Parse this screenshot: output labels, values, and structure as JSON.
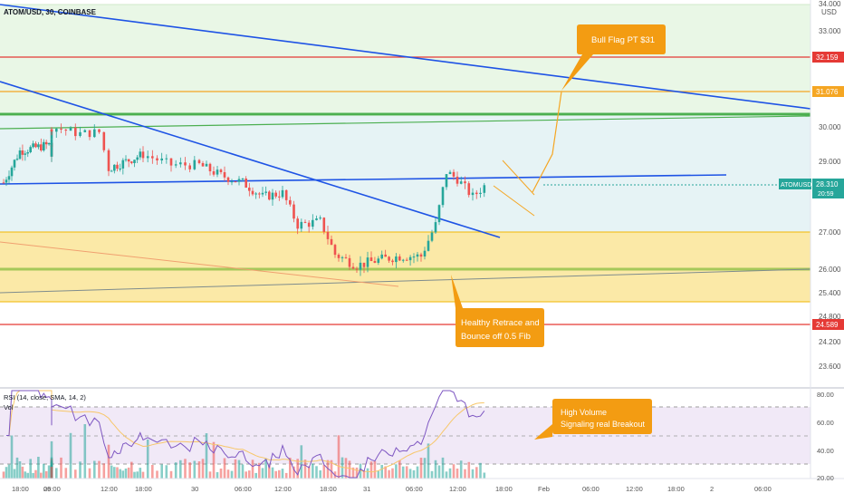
{
  "header": {
    "symbol_line": "ATOM/USD, 30, COINBASE"
  },
  "price_axis": {
    "currency": "USD",
    "ticks": [
      "34.000",
      "33.000",
      "30.000",
      "29.000",
      "27.000",
      "26.000",
      "25.400",
      "24.800",
      "24.200",
      "23.600"
    ]
  },
  "badges": {
    "r1": "32.159",
    "r2": "31.076",
    "current_symbol": "ATOMUSD",
    "current_price": "28.310",
    "current_timer": "20:59",
    "support": "24.589"
  },
  "annotations": {
    "bull_flag": "Bull Flag PT $31",
    "retrace_line1": "Healthy Retrace and",
    "retrace_line2": "Bounce off 0.5 Fib",
    "volume_line1": "High Volume",
    "volume_line2": "Signaling real Breakout"
  },
  "indicator": {
    "rsi_label": "RSI (14, close, SMA, 14, 2)",
    "vol_label": "Vol",
    "ticks": [
      "80.00",
      "60.00",
      "40.00",
      "20.00"
    ]
  },
  "time_axis": {
    "labels": [
      "18:00",
      "29",
      "06:00",
      "12:00",
      "18:00",
      "30",
      "06:00",
      "12:00",
      "18:00",
      "31",
      "06:00",
      "12:00",
      "18:00",
      "Feb",
      "06:00",
      "12:00",
      "18:00",
      "2",
      "06:00"
    ]
  },
  "colors": {
    "up": "#26a69a",
    "down": "#ef5350",
    "trend": "#1e53e5",
    "zone_yellow": "#fbe9a7",
    "zone_green": "#e9f7e6",
    "zone_blue": "#e6f3f5",
    "callout": "#f39c12",
    "resist": "#e53935"
  },
  "chart_data": {
    "type": "candlestick",
    "title": "ATOM/USD, 30, COINBASE",
    "interval": "30",
    "exchange": "COINBASE",
    "x_start": "Jan 28 14:30",
    "x_label_times": [
      "Jan 28 18:00",
      "Jan 29 00:00",
      "Jan 29 06:00",
      "Jan 29 12:00",
      "Jan 29 18:00",
      "Jan 30 00:00",
      "Jan 30 06:00",
      "Jan 30 12:00",
      "Jan 30 18:00",
      "Jan 31 00:00",
      "Jan 31 06:00",
      "Jan 31 12:00",
      "Jan 31 18:00",
      "Feb 1 00:00",
      "Feb 1 06:00",
      "Feb 1 12:00",
      "Feb 1 18:00",
      "Feb 2 00:00",
      "Feb 2 06:00"
    ],
    "ylabel": "USD",
    "close_path": [
      {
        "t": "Jan 28 15:00",
        "close": 28.4
      },
      {
        "t": "Jan 28 18:00",
        "close": 29.3
      },
      {
        "t": "Jan 29 00:00",
        "close": 29.5
      },
      {
        "t": "Jan 29 03:00",
        "close": 29.2
      },
      {
        "t": "Jan 29 06:00",
        "close": 30.0
      },
      {
        "t": "Jan 29 09:00",
        "close": 29.8
      },
      {
        "t": "Jan 29 11:00",
        "close": 29.85
      },
      {
        "t": "Jan 29 12:00",
        "close": 28.8
      },
      {
        "t": "Jan 29 15:00",
        "close": 29.0
      },
      {
        "t": "Jan 29 18:00",
        "close": 29.2
      },
      {
        "t": "Jan 29 21:00",
        "close": 28.9
      },
      {
        "t": "Jan 30 00:00",
        "close": 28.9
      },
      {
        "t": "Jan 30 03:00",
        "close": 28.6
      },
      {
        "t": "Jan 30 06:00",
        "close": 28.4
      },
      {
        "t": "Jan 30 09:00",
        "close": 28.0
      },
      {
        "t": "Jan 30 12:00",
        "close": 28.1
      },
      {
        "t": "Jan 30 14:00",
        "close": 27.2
      },
      {
        "t": "Jan 30 17:00",
        "close": 27.3
      },
      {
        "t": "Jan 30 19:00",
        "close": 26.4
      },
      {
        "t": "Jan 30 22:00",
        "close": 26.1
      },
      {
        "t": "Jan 31 01:00",
        "close": 26.25
      },
      {
        "t": "Jan 31 04:00",
        "close": 26.35
      },
      {
        "t": "Jan 31 07:00",
        "close": 26.35
      },
      {
        "t": "Jan 31 09:00",
        "close": 27.2
      },
      {
        "t": "Jan 31 10:30",
        "close": 28.7
      },
      {
        "t": "Jan 31 12:00",
        "close": 28.5
      },
      {
        "t": "Jan 31 14:00",
        "close": 28.0
      },
      {
        "t": "Jan 31 15:30",
        "close": 28.3
      }
    ],
    "horizontal_levels": [
      32.159,
      31.076,
      24.589
    ],
    "zones": [
      {
        "from": 26.0,
        "to": 27.0
      },
      {
        "from": 25.0,
        "to": 26.0
      }
    ],
    "projection_target": 31.0,
    "rsi": {
      "period": 14,
      "last": 65,
      "levels": [
        70,
        50,
        30
      ]
    },
    "volume_spike": "Jan 31 15:00"
  }
}
